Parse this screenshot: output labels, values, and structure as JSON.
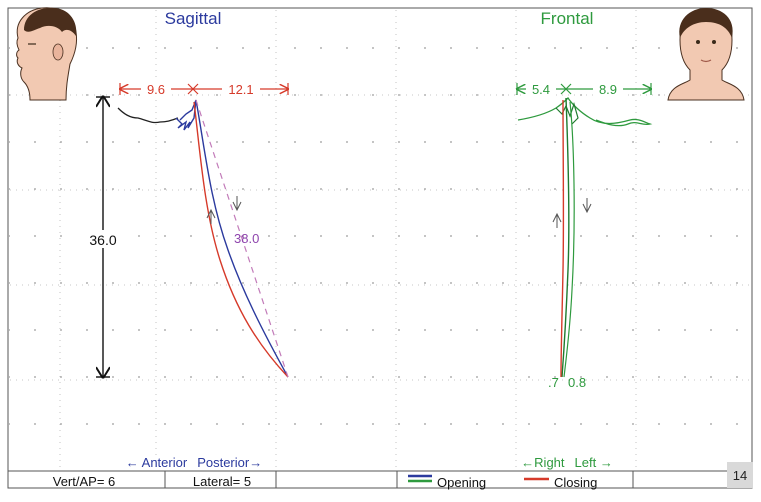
{
  "sagittal": {
    "title": "Sagittal",
    "anterior_dim": "9.6",
    "posterior_dim": "12.1",
    "vertical_dim": "36.0",
    "path_length": "38.0",
    "direction_anterior": "← Anterior",
    "direction_posterior": "Posterior→"
  },
  "frontal": {
    "title": "Frontal",
    "right_dim": "5.4",
    "left_dim": "8.9",
    "bottom_value": ".7",
    "bottom_value2": "0.8",
    "direction_right": "←Right",
    "direction_left": "Left →"
  },
  "status_bar": {
    "vert_ap": "Vert/AP= 6",
    "lateral": "Lateral= 5",
    "opening": "Opening",
    "closing": "Closing"
  },
  "figure_number": "14",
  "colors": {
    "sagittal_title": "#2b3a9e",
    "frontal": "#2e9a3e",
    "dimension_red": "#d63a2a",
    "opening": "#2b3a9e",
    "closing": "#d63a2a",
    "purple": "#8e44ad",
    "frontal_opening": "#1f7a2e"
  }
}
